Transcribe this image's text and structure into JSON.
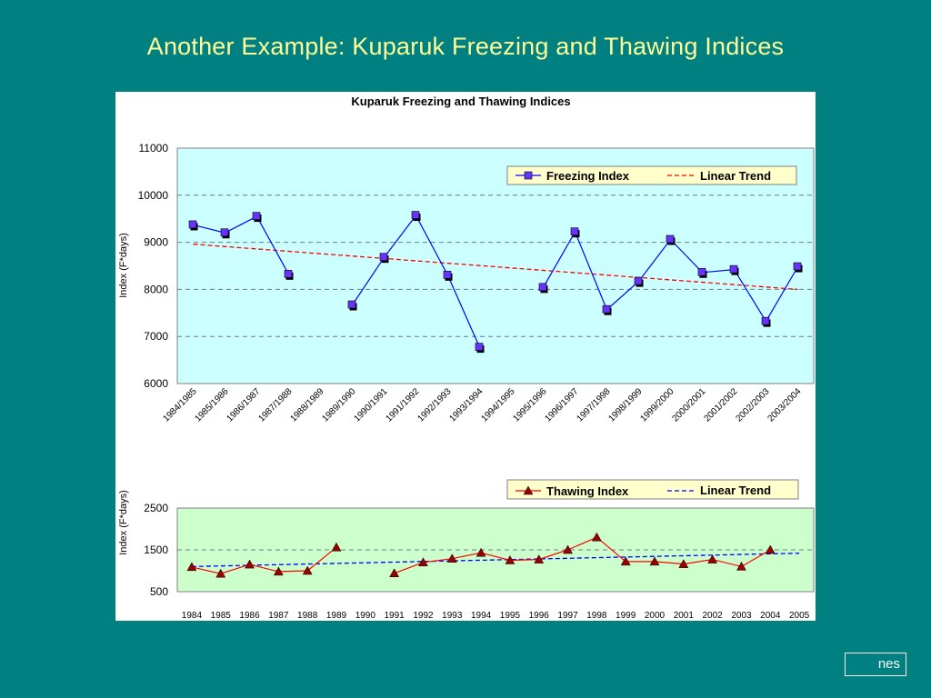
{
  "slide": {
    "title": "Another Example: Kuparuk Freezing and Thawing Indices",
    "footer": "nes"
  },
  "colors": {
    "background": "#008080",
    "title": "#ffff99",
    "freezing_plot_bg": "#ccffff",
    "thawing_plot_bg": "#ccffcc",
    "freezing_line": "#0000ff",
    "freezing_marker": "#6633ff",
    "freezing_trend": "#ff0000",
    "thawing_line": "#ff0000",
    "thawing_marker": "#990000",
    "thawing_trend": "#0000ff"
  },
  "chart_data": [
    {
      "type": "line",
      "title": "Kuparuk Freezing and Thawing Indices",
      "ylabel": "Index (F*days)",
      "xlabel": "",
      "ylim": [
        6000,
        11000
      ],
      "yticks": [
        6000,
        7000,
        8000,
        9000,
        10000,
        11000
      ],
      "grid": true,
      "legend_position": "top-right",
      "categories": [
        "1984/1985",
        "1985/1986",
        "1986/1987",
        "1987/1988",
        "1988/1989",
        "1989/1990",
        "1990/1991",
        "1991/1992",
        "1992/1993",
        "1993/1994",
        "1994/1995",
        "1995/1996",
        "1996/1997",
        "1997/1998",
        "1998/1999",
        "1999/2000",
        "2000/2001",
        "2001/2002",
        "2002/2003",
        "2003/2004"
      ],
      "series": [
        {
          "name": "Freezing Index",
          "values": [
            9370,
            9200,
            9550,
            8320,
            null,
            7670,
            8680,
            9570,
            8300,
            6770,
            null,
            8040,
            9220,
            7570,
            8170,
            9060,
            8360,
            8420,
            7320,
            8480
          ]
        },
        {
          "name": "Linear Trend",
          "style": "dashed",
          "start": 8960,
          "end": 8000
        }
      ]
    },
    {
      "type": "line",
      "ylabel": "Index (F*days)",
      "xlabel": "",
      "ylim": [
        500,
        2500
      ],
      "yticks": [
        500,
        1500,
        2500
      ],
      "grid": true,
      "legend_position": "top-right",
      "categories": [
        "1984",
        "1985",
        "1986",
        "1987",
        "1988",
        "1989",
        "1990",
        "1991",
        "1992",
        "1993",
        "1994",
        "1995",
        "1996",
        "1997",
        "1998",
        "1999",
        "2000",
        "2001",
        "2002",
        "2003",
        "2004",
        "2005"
      ],
      "series": [
        {
          "name": "Thawing Index",
          "values": [
            1090,
            930,
            1150,
            980,
            1000,
            1560,
            null,
            940,
            1200,
            1290,
            1430,
            1250,
            1270,
            1500,
            1800,
            1220,
            1220,
            1160,
            1270,
            1100,
            1500,
            null
          ]
        },
        {
          "name": "Linear Trend",
          "style": "dashed",
          "start": 1100,
          "end": 1420
        }
      ]
    }
  ]
}
